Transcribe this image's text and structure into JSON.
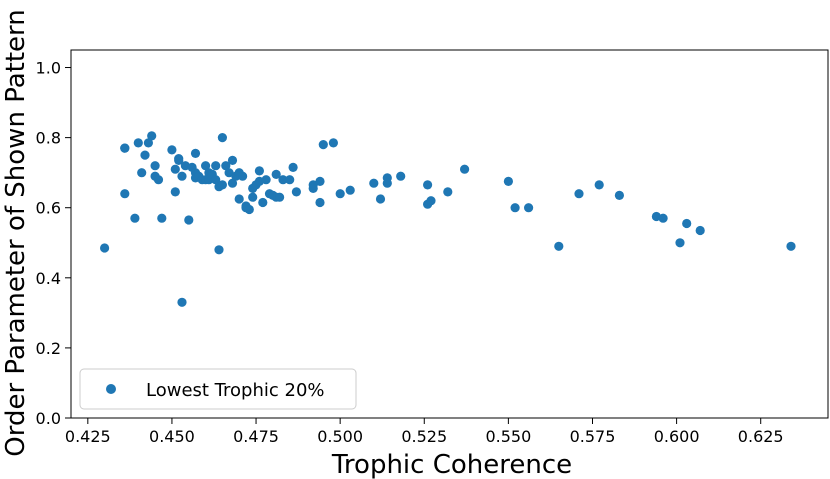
{
  "chart_data": {
    "type": "scatter",
    "xlabel": "Trophic Coherence",
    "ylabel": "Order Parameter of Shown Pattern",
    "xlim": [
      0.42,
      0.645
    ],
    "ylim": [
      0.0,
      1.05
    ],
    "xticks": [
      "0.425",
      "0.450",
      "0.475",
      "0.500",
      "0.525",
      "0.550",
      "0.575",
      "0.600",
      "0.625"
    ],
    "yticks": [
      "0.0",
      "0.2",
      "0.4",
      "0.6",
      "0.8",
      "1.0"
    ],
    "grid": false,
    "legend_position": "bottom-left",
    "series": [
      {
        "name": "Lowest Trophic 20%",
        "color": "#1f77b4",
        "points": [
          [
            0.43,
            0.485
          ],
          [
            0.436,
            0.77
          ],
          [
            0.436,
            0.77
          ],
          [
            0.436,
            0.64
          ],
          [
            0.439,
            0.57
          ],
          [
            0.44,
            0.785
          ],
          [
            0.441,
            0.7
          ],
          [
            0.442,
            0.75
          ],
          [
            0.443,
            0.785
          ],
          [
            0.444,
            0.805
          ],
          [
            0.445,
            0.72
          ],
          [
            0.445,
            0.69
          ],
          [
            0.446,
            0.68
          ],
          [
            0.447,
            0.57
          ],
          [
            0.45,
            0.765
          ],
          [
            0.451,
            0.71
          ],
          [
            0.451,
            0.645
          ],
          [
            0.452,
            0.74
          ],
          [
            0.452,
            0.735
          ],
          [
            0.453,
            0.33
          ],
          [
            0.453,
            0.69
          ],
          [
            0.454,
            0.72
          ],
          [
            0.455,
            0.565
          ],
          [
            0.456,
            0.715
          ],
          [
            0.457,
            0.755
          ],
          [
            0.457,
            0.7
          ],
          [
            0.457,
            0.685
          ],
          [
            0.458,
            0.69
          ],
          [
            0.459,
            0.68
          ],
          [
            0.46,
            0.72
          ],
          [
            0.46,
            0.68
          ],
          [
            0.461,
            0.7
          ],
          [
            0.461,
            0.68
          ],
          [
            0.462,
            0.695
          ],
          [
            0.463,
            0.72
          ],
          [
            0.463,
            0.68
          ],
          [
            0.464,
            0.66
          ],
          [
            0.464,
            0.48
          ],
          [
            0.465,
            0.8
          ],
          [
            0.465,
            0.665
          ],
          [
            0.466,
            0.72
          ],
          [
            0.467,
            0.7
          ],
          [
            0.468,
            0.735
          ],
          [
            0.468,
            0.67
          ],
          [
            0.469,
            0.69
          ],
          [
            0.47,
            0.625
          ],
          [
            0.47,
            0.7
          ],
          [
            0.471,
            0.69
          ],
          [
            0.472,
            0.605
          ],
          [
            0.472,
            0.6
          ],
          [
            0.473,
            0.595
          ],
          [
            0.474,
            0.63
          ],
          [
            0.474,
            0.655
          ],
          [
            0.475,
            0.665
          ],
          [
            0.476,
            0.705
          ],
          [
            0.476,
            0.675
          ],
          [
            0.477,
            0.615
          ],
          [
            0.478,
            0.68
          ],
          [
            0.479,
            0.64
          ],
          [
            0.48,
            0.635
          ],
          [
            0.481,
            0.695
          ],
          [
            0.481,
            0.63
          ],
          [
            0.482,
            0.63
          ],
          [
            0.483,
            0.68
          ],
          [
            0.485,
            0.68
          ],
          [
            0.486,
            0.715
          ],
          [
            0.487,
            0.645
          ],
          [
            0.492,
            0.665
          ],
          [
            0.492,
            0.655
          ],
          [
            0.494,
            0.615
          ],
          [
            0.494,
            0.675
          ],
          [
            0.495,
            0.78
          ],
          [
            0.498,
            0.785
          ],
          [
            0.5,
            0.64
          ],
          [
            0.503,
            0.65
          ],
          [
            0.51,
            0.67
          ],
          [
            0.512,
            0.625
          ],
          [
            0.514,
            0.685
          ],
          [
            0.514,
            0.67
          ],
          [
            0.518,
            0.69
          ],
          [
            0.526,
            0.665
          ],
          [
            0.526,
            0.61
          ],
          [
            0.527,
            0.62
          ],
          [
            0.532,
            0.645
          ],
          [
            0.537,
            0.71
          ],
          [
            0.55,
            0.675
          ],
          [
            0.552,
            0.6
          ],
          [
            0.556,
            0.6
          ],
          [
            0.565,
            0.49
          ],
          [
            0.571,
            0.64
          ],
          [
            0.577,
            0.665
          ],
          [
            0.583,
            0.635
          ],
          [
            0.594,
            0.575
          ],
          [
            0.596,
            0.57
          ],
          [
            0.601,
            0.5
          ],
          [
            0.603,
            0.555
          ],
          [
            0.607,
            0.535
          ],
          [
            0.634,
            0.49
          ]
        ]
      }
    ]
  }
}
